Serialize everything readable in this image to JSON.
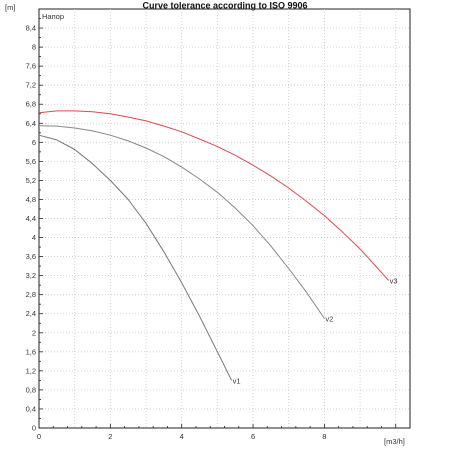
{
  "chart_data": {
    "type": "line",
    "title": "Curve tolerance according to ISO 9906",
    "ylabel": "Напор",
    "yunit": "[m]",
    "xunit": "[m3/h]",
    "xlim": [
      0,
      10.4
    ],
    "ylim": [
      0,
      8.8
    ],
    "x_ticks": [
      0,
      2,
      4,
      6,
      8
    ],
    "y_ticks": [
      0,
      0.4,
      0.8,
      1.2,
      1.6,
      2,
      2.4,
      2.8,
      3.2,
      3.6,
      4,
      4.4,
      4.8,
      5.2,
      5.6,
      6,
      6.4,
      6.8,
      7.2,
      7.6,
      8,
      8.4
    ],
    "y_tick_labels": [
      "0",
      "0,4",
      "0,8",
      "1,2",
      "1,6",
      "2",
      "2,4",
      "2,8",
      "3,2",
      "3,6",
      "4",
      "4,4",
      "4,8",
      "5,2",
      "5,6",
      "6",
      "6,4",
      "6,8",
      "7,2",
      "7,6",
      "8",
      "8,4"
    ],
    "grid": true,
    "colors": {
      "v1": "#777777",
      "v2": "#888888",
      "v3": "#e04a4a"
    },
    "series": [
      {
        "name": "v1",
        "color": "#777777",
        "x": [
          0,
          0.5,
          1,
          1.5,
          2,
          2.5,
          3,
          3.5,
          4,
          4.5,
          5,
          5.4
        ],
        "y": [
          6.15,
          6.05,
          5.85,
          5.55,
          5.2,
          4.8,
          4.3,
          3.7,
          3.05,
          2.35,
          1.6,
          1.0
        ]
      },
      {
        "name": "v2",
        "color": "#888888",
        "x": [
          0,
          0.5,
          1,
          1.5,
          2,
          2.5,
          3,
          3.5,
          4,
          4.5,
          5,
          5.5,
          6,
          6.5,
          7,
          7.5,
          8
        ],
        "y": [
          6.35,
          6.34,
          6.3,
          6.24,
          6.15,
          6.03,
          5.88,
          5.7,
          5.48,
          5.23,
          4.95,
          4.62,
          4.25,
          3.82,
          3.35,
          2.85,
          2.3
        ]
      },
      {
        "name": "v3",
        "color": "#e04a4a",
        "x": [
          0,
          0.5,
          1,
          1.5,
          2,
          2.5,
          3,
          3.5,
          4,
          4.5,
          5,
          5.5,
          6,
          6.5,
          7,
          7.5,
          8,
          8.5,
          9,
          9.5,
          9.8
        ],
        "y": [
          6.62,
          6.66,
          6.66,
          6.64,
          6.6,
          6.53,
          6.45,
          6.34,
          6.22,
          6.07,
          5.91,
          5.73,
          5.52,
          5.29,
          5.04,
          4.76,
          4.46,
          4.12,
          3.76,
          3.35,
          3.1
        ]
      }
    ]
  }
}
